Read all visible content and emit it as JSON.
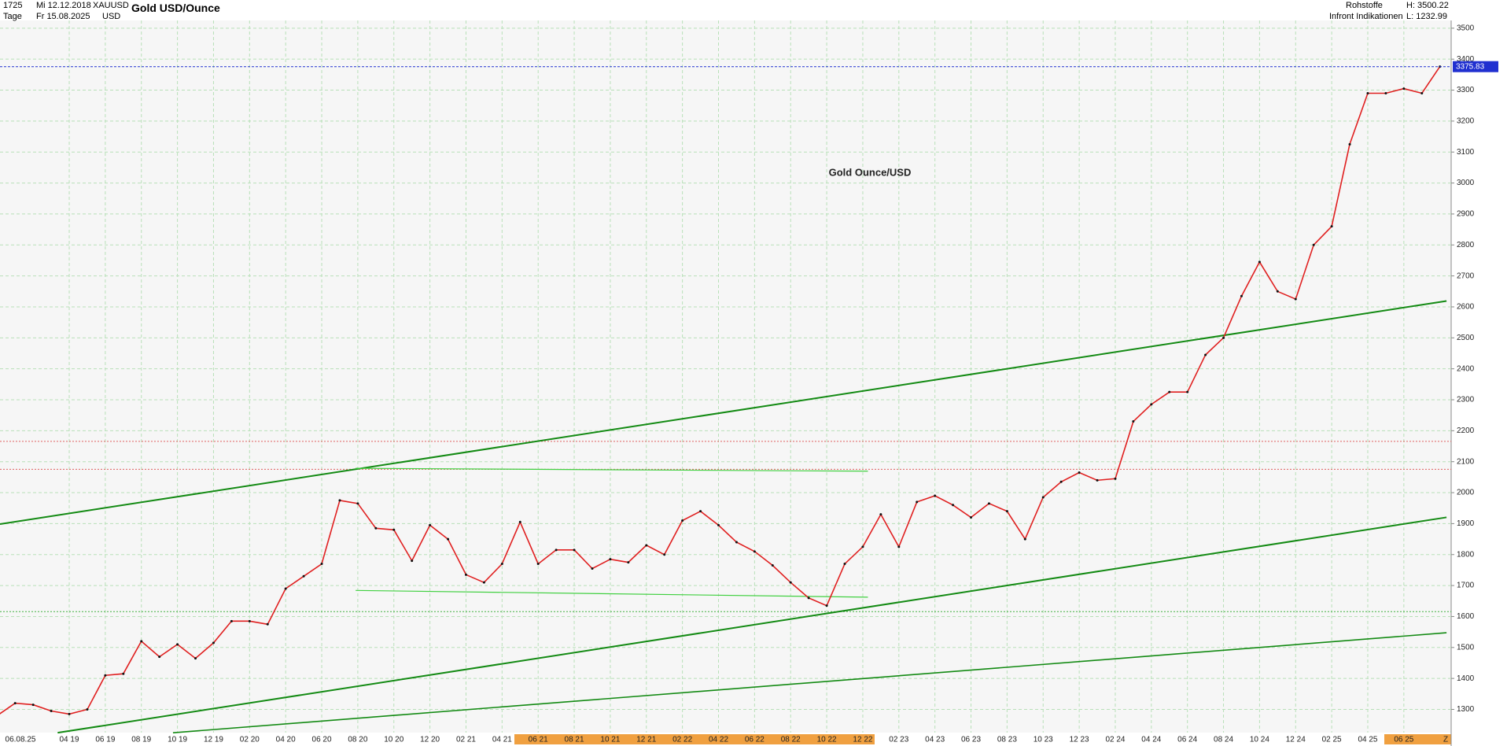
{
  "header": {
    "count": "1725",
    "start_date": "Mi 12.12.2018",
    "symbol": "XAUUSD",
    "title": "Gold USD/Ounce",
    "period": "Tage",
    "end_date": "Fr 15.08.2025",
    "currency": "USD",
    "category": "Rohstoffe",
    "high": "H: 3500.22",
    "source": "Infront Indikationen",
    "low": "L: 1232.99"
  },
  "chart_data": {
    "type": "line",
    "annotation": "Gold Ounce/USD",
    "color": "#e02020",
    "x": [
      "12 18",
      "01 19",
      "02 19",
      "03 19",
      "04 19",
      "05 19",
      "06 19",
      "07 19",
      "08 19",
      "09 19",
      "10 19",
      "11 19",
      "12 19",
      "01 20",
      "02 20",
      "03 20",
      "04 20",
      "05 20",
      "06 20",
      "07 20",
      "08 20",
      "09 20",
      "10 20",
      "11 20",
      "12 20",
      "01 21",
      "02 21",
      "03 21",
      "04 21",
      "05 21",
      "06 21",
      "07 21",
      "08 21",
      "09 21",
      "10 21",
      "11 21",
      "12 21",
      "01 22",
      "02 22",
      "03 22",
      "04 22",
      "05 22",
      "06 22",
      "07 22",
      "08 22",
      "09 22",
      "10 22",
      "11 22",
      "12 22",
      "01 23",
      "02 23",
      "03 23",
      "04 23",
      "05 23",
      "06 23",
      "07 23",
      "08 23",
      "09 23",
      "10 23",
      "11 23",
      "12 23",
      "01 24",
      "02 24",
      "03 24",
      "04 24",
      "05 24",
      "06 24",
      "07 24",
      "08 24",
      "09 24",
      "10 24",
      "11 24",
      "12 24",
      "01 25",
      "02 25",
      "03 25",
      "04 25",
      "05 25",
      "06 25",
      "07 25",
      "08 25"
    ],
    "values": [
      1280,
      1320,
      1315,
      1295,
      1285,
      1300,
      1410,
      1415,
      1520,
      1470,
      1510,
      1465,
      1515,
      1585,
      1585,
      1575,
      1690,
      1730,
      1770,
      1975,
      1965,
      1885,
      1880,
      1780,
      1895,
      1850,
      1735,
      1710,
      1770,
      1905,
      1770,
      1815,
      1815,
      1755,
      1785,
      1775,
      1830,
      1800,
      1910,
      1940,
      1895,
      1840,
      1810,
      1765,
      1710,
      1660,
      1635,
      1770,
      1825,
      1930,
      1825,
      1970,
      1990,
      1960,
      1920,
      1965,
      1940,
      1850,
      1985,
      2035,
      2065,
      2040,
      2045,
      2230,
      2285,
      2325,
      2325,
      2445,
      2500,
      2635,
      2745,
      2650,
      2625,
      2800,
      2860,
      3125,
      3290,
      3290,
      3305,
      3290,
      3376
    ],
    "xticks": [
      "04 19",
      "06 19",
      "08 19",
      "10 19",
      "12 19",
      "02 20",
      "04 20",
      "06 20",
      "08 20",
      "10 20",
      "12 20",
      "02 21",
      "04 21",
      "06 21",
      "08 21",
      "10 21",
      "12 21",
      "02 22",
      "04 22",
      "06 22",
      "08 22",
      "10 22",
      "12 22",
      "02 23",
      "04 23",
      "06 23",
      "08 23",
      "10 23",
      "12 23",
      "02 24",
      "04 24",
      "06 24",
      "08 24",
      "10 24",
      "12 24",
      "02 25",
      "04 25",
      "06 25"
    ],
    "x_start_label": "06.08.25",
    "axis_end_label": "Z",
    "ylim": [
      1225,
      3525
    ],
    "yticks": [
      1300,
      1400,
      1500,
      1600,
      1700,
      1800,
      1900,
      2000,
      2100,
      2200,
      2300,
      2400,
      2500,
      2600,
      2700,
      2800,
      2900,
      3000,
      3100,
      3200,
      3300,
      3400,
      3500
    ],
    "last_price": 3375.83,
    "grid": true
  }
}
